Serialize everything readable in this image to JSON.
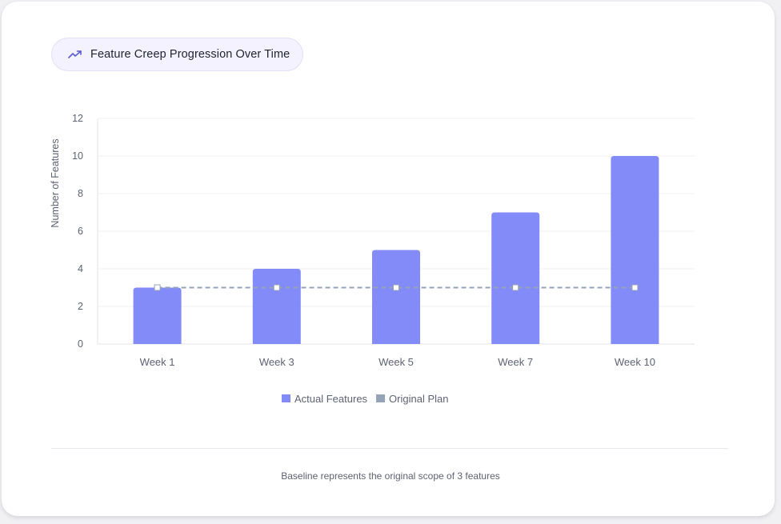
{
  "header": {
    "title": "Feature Creep Progression Over Time",
    "icon": "trending-up-icon"
  },
  "footnote": "Baseline represents the original scope of 3 features",
  "colors": {
    "bar": "#838bf8",
    "baseline": "#94a3b8",
    "accent": "#5b5bd6",
    "grid": "#eef0f4",
    "axis_text": "#5d6274"
  },
  "chart_data": {
    "type": "bar",
    "title": "Feature Creep Progression Over Time",
    "xlabel": "",
    "ylabel": "Number of Features",
    "categories": [
      "Week 1",
      "Week 3",
      "Week 5",
      "Week 7",
      "Week 10"
    ],
    "series": [
      {
        "name": "Actual Features",
        "type": "bar",
        "values": [
          3,
          4,
          5,
          7,
          10
        ]
      },
      {
        "name": "Original Plan",
        "type": "line",
        "style": "dashed",
        "values": [
          3,
          3,
          3,
          3,
          3
        ]
      }
    ],
    "ylim": [
      0,
      12
    ],
    "yticks": [
      0,
      2,
      4,
      6,
      8,
      10,
      12
    ],
    "grid": true,
    "legend": "bottom-center"
  }
}
